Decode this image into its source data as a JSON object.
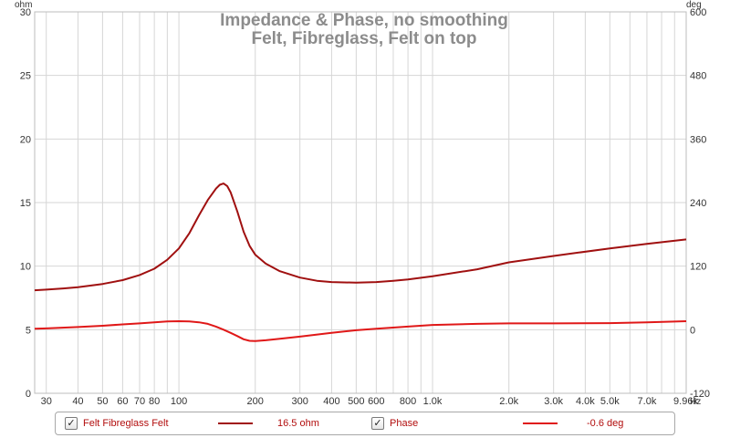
{
  "chart_data": {
    "type": "line",
    "title": "Impedance & Phase, no smoothing",
    "subtitle": "Felt, Fibreglass, Felt on top",
    "xlabel": "",
    "x_unit": "Hz",
    "x_scale": "log",
    "xlim": [
      27,
      10000
    ],
    "x_ticks": [
      {
        "value": 30,
        "label": "30"
      },
      {
        "value": 40,
        "label": "40"
      },
      {
        "value": 50,
        "label": "50"
      },
      {
        "value": 60,
        "label": "60"
      },
      {
        "value": 70,
        "label": "70"
      },
      {
        "value": 80,
        "label": "80"
      },
      {
        "value": 100,
        "label": "100"
      },
      {
        "value": 200,
        "label": "200"
      },
      {
        "value": 300,
        "label": "300"
      },
      {
        "value": 400,
        "label": "400"
      },
      {
        "value": 500,
        "label": "500"
      },
      {
        "value": 600,
        "label": "600"
      },
      {
        "value": 800,
        "label": "800"
      },
      {
        "value": 1000,
        "label": "1.0k"
      },
      {
        "value": 2000,
        "label": "2.0k"
      },
      {
        "value": 3000,
        "label": "3.0k"
      },
      {
        "value": 4000,
        "label": "4.0k"
      },
      {
        "value": 5000,
        "label": "5.0k"
      },
      {
        "value": 7000,
        "label": "7.0k"
      },
      {
        "value": 9960,
        "label": "9.96k"
      }
    ],
    "x_grid": [
      30,
      40,
      50,
      60,
      70,
      80,
      90,
      100,
      200,
      300,
      400,
      500,
      600,
      700,
      800,
      900,
      1000,
      2000,
      3000,
      4000,
      5000,
      6000,
      7000,
      8000,
      9000
    ],
    "y_left": {
      "unit": "ohm",
      "lim": [
        0,
        30
      ],
      "ticks": [
        0,
        5,
        10,
        15,
        20,
        25,
        30
      ]
    },
    "y_right": {
      "unit": "deg",
      "lim": [
        -120,
        600
      ],
      "ticks": [
        -120,
        0,
        120,
        240,
        360,
        480,
        600
      ]
    },
    "grid": true,
    "legend_position": "bottom",
    "series": [
      {
        "name": "Felt Fibreglass Felt",
        "axis": "left",
        "color": "#a01010",
        "readout": "16.5 ohm",
        "checked": true,
        "x": [
          27,
          30,
          35,
          40,
          50,
          60,
          70,
          80,
          90,
          100,
          110,
          120,
          130,
          140,
          145,
          150,
          155,
          160,
          170,
          180,
          190,
          200,
          220,
          250,
          300,
          350,
          400,
          500,
          600,
          700,
          800,
          1000,
          1500,
          2000,
          3000,
          5000,
          7000,
          10000
        ],
        "y": [
          8.1,
          8.15,
          8.25,
          8.35,
          8.6,
          8.9,
          9.3,
          9.8,
          10.5,
          11.4,
          12.6,
          14.0,
          15.2,
          16.1,
          16.4,
          16.5,
          16.3,
          15.8,
          14.3,
          12.7,
          11.6,
          10.9,
          10.2,
          9.6,
          9.1,
          8.85,
          8.75,
          8.7,
          8.75,
          8.85,
          8.95,
          9.2,
          9.75,
          10.3,
          10.8,
          11.4,
          11.75,
          12.1
        ]
      },
      {
        "name": "Phase",
        "axis": "right",
        "color": "#e01818",
        "readout": "-0.6 deg",
        "checked": true,
        "x": [
          27,
          30,
          40,
          50,
          60,
          70,
          80,
          90,
          100,
          110,
          120,
          130,
          140,
          150,
          160,
          170,
          180,
          190,
          200,
          220,
          250,
          300,
          400,
          500,
          600,
          800,
          1000,
          1500,
          2000,
          3000,
          5000,
          7000,
          10000
        ],
        "y": [
          2,
          2.5,
          5,
          7.5,
          10,
          12,
          14,
          15.5,
          16,
          15.5,
          14,
          11,
          6,
          0,
          -6,
          -12,
          -18,
          -21,
          -21.5,
          -20,
          -17,
          -13,
          -6,
          -1,
          2,
          6,
          9,
          11,
          12,
          12,
          12.5,
          14,
          16
        ]
      }
    ]
  }
}
